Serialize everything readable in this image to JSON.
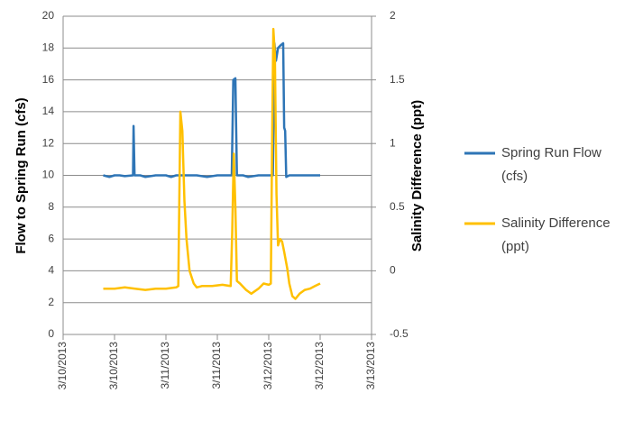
{
  "chart_data": {
    "type": "line",
    "y_label": "Flow to Spring Run (cfs)",
    "y2_label": "Salinity Difference (ppt)",
    "xlim": [
      0,
      3
    ],
    "xticks": [
      {
        "value": 0,
        "label": "3/10/2013"
      },
      {
        "value": 0.5,
        "label": "3/10/2013"
      },
      {
        "value": 1,
        "label": "3/11/2013"
      },
      {
        "value": 1.5,
        "label": "3/11/2013"
      },
      {
        "value": 2,
        "label": "3/12/2013"
      },
      {
        "value": 2.5,
        "label": "3/12/2013"
      },
      {
        "value": 3,
        "label": "3/13/2013"
      }
    ],
    "ylim": [
      0,
      20
    ],
    "yticks": [
      0,
      2,
      4,
      6,
      8,
      10,
      12,
      14,
      16,
      18,
      20
    ],
    "y2lim": [
      -0.5,
      2
    ],
    "y2ticks": [
      -0.5,
      0,
      0.5,
      1,
      1.5,
      2
    ],
    "grid": true,
    "legend": "right",
    "series": [
      {
        "name": "Spring Run Flow (cfs)",
        "color": "#2e75b6",
        "axis": "y",
        "x": [
          0.39,
          0.45,
          0.5,
          0.55,
          0.6,
          0.68,
          0.685,
          0.695,
          0.75,
          0.8,
          0.9,
          1.0,
          1.05,
          1.1,
          1.15,
          1.2,
          1.3,
          1.4,
          1.5,
          1.6,
          1.64,
          1.655,
          1.675,
          1.69,
          1.75,
          1.8,
          1.9,
          2.0,
          2.04,
          2.055,
          2.07,
          2.09,
          2.12,
          2.14,
          2.15,
          2.16,
          2.17,
          2.2,
          2.3,
          2.4,
          2.5
        ],
        "values": [
          10,
          9.9,
          10,
          10,
          9.95,
          10,
          13.1,
          10,
          10,
          9.9,
          10,
          10,
          9.9,
          10,
          10,
          10,
          10,
          9.9,
          10,
          10,
          10,
          16,
          16.1,
          10,
          10,
          9.9,
          10,
          10,
          10,
          18.3,
          17.2,
          18,
          18.2,
          18.3,
          13,
          12.8,
          9.9,
          10,
          10,
          10,
          10
        ]
      },
      {
        "name": "Salinity Difference (ppt)",
        "color": "#ffc000",
        "axis": "y2",
        "x": [
          0.39,
          0.5,
          0.6,
          0.7,
          0.8,
          0.9,
          1.0,
          1.1,
          1.12,
          1.14,
          1.16,
          1.18,
          1.2,
          1.23,
          1.27,
          1.3,
          1.35,
          1.45,
          1.55,
          1.63,
          1.645,
          1.66,
          1.675,
          1.69,
          1.72,
          1.78,
          1.83,
          1.9,
          1.95,
          2.0,
          2.02,
          2.035,
          2.045,
          2.06,
          2.075,
          2.09,
          2.11,
          2.13,
          2.15,
          2.18,
          2.2,
          2.23,
          2.26,
          2.3,
          2.35,
          2.4,
          2.45,
          2.5
        ],
        "values": [
          -0.14,
          -0.14,
          -0.13,
          -0.14,
          -0.15,
          -0.14,
          -0.14,
          -0.13,
          -0.12,
          1.25,
          1.1,
          0.55,
          0.25,
          0.0,
          -0.1,
          -0.13,
          -0.12,
          -0.12,
          -0.11,
          -0.12,
          0.3,
          0.92,
          0.5,
          -0.08,
          -0.1,
          -0.15,
          -0.18,
          -0.14,
          -0.1,
          -0.11,
          -0.1,
          1.2,
          1.9,
          1.7,
          0.6,
          0.2,
          0.25,
          0.23,
          0.15,
          0.02,
          -0.1,
          -0.2,
          -0.22,
          -0.18,
          -0.15,
          -0.14,
          -0.12,
          -0.1
        ]
      }
    ]
  }
}
